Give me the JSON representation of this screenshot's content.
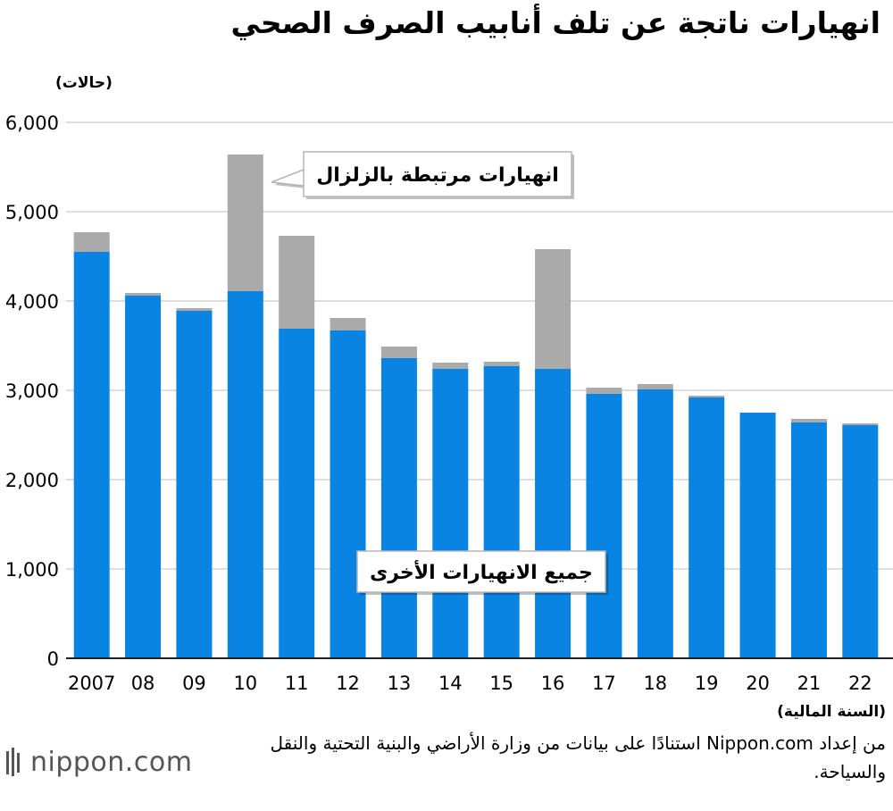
{
  "chart_data": {
    "type": "bar",
    "stacked": true,
    "title": "انهيارات ناتجة عن تلف أنابيب الصرف الصحي",
    "ylabel": "(حالات)",
    "xlabel": "(السنة المالية)",
    "ylim": [
      0,
      6000
    ],
    "yticks": [
      "0",
      "1,000",
      "2,000",
      "3,000",
      "4,000",
      "5,000",
      "6,000"
    ],
    "grid": true,
    "categories": [
      "2007",
      "08",
      "09",
      "10",
      "11",
      "12",
      "13",
      "14",
      "15",
      "16",
      "17",
      "18",
      "19",
      "20",
      "21",
      "22"
    ],
    "series": [
      {
        "name": "جميع الانهيارات الأخرى",
        "color": "#0a84e3",
        "values": [
          4550,
          4060,
          3890,
          4110,
          3690,
          3670,
          3360,
          3240,
          3270,
          3240,
          2960,
          3010,
          2920,
          2750,
          2640,
          2610
        ]
      },
      {
        "name": "انهيارات مرتبطة بالزلزال",
        "color": "#aaaaaa",
        "values": [
          220,
          30,
          30,
          1530,
          1040,
          140,
          130,
          70,
          50,
          1340,
          70,
          60,
          20,
          0,
          40,
          20
        ]
      }
    ]
  },
  "source": "من إعداد Nippon.com استنادًا على بيانات من وزارة الأراضي والبنية التحتية والنقل والسياحة.",
  "logo": {
    "text": "nippon.com",
    "icon": "nippon-logo-icon"
  }
}
